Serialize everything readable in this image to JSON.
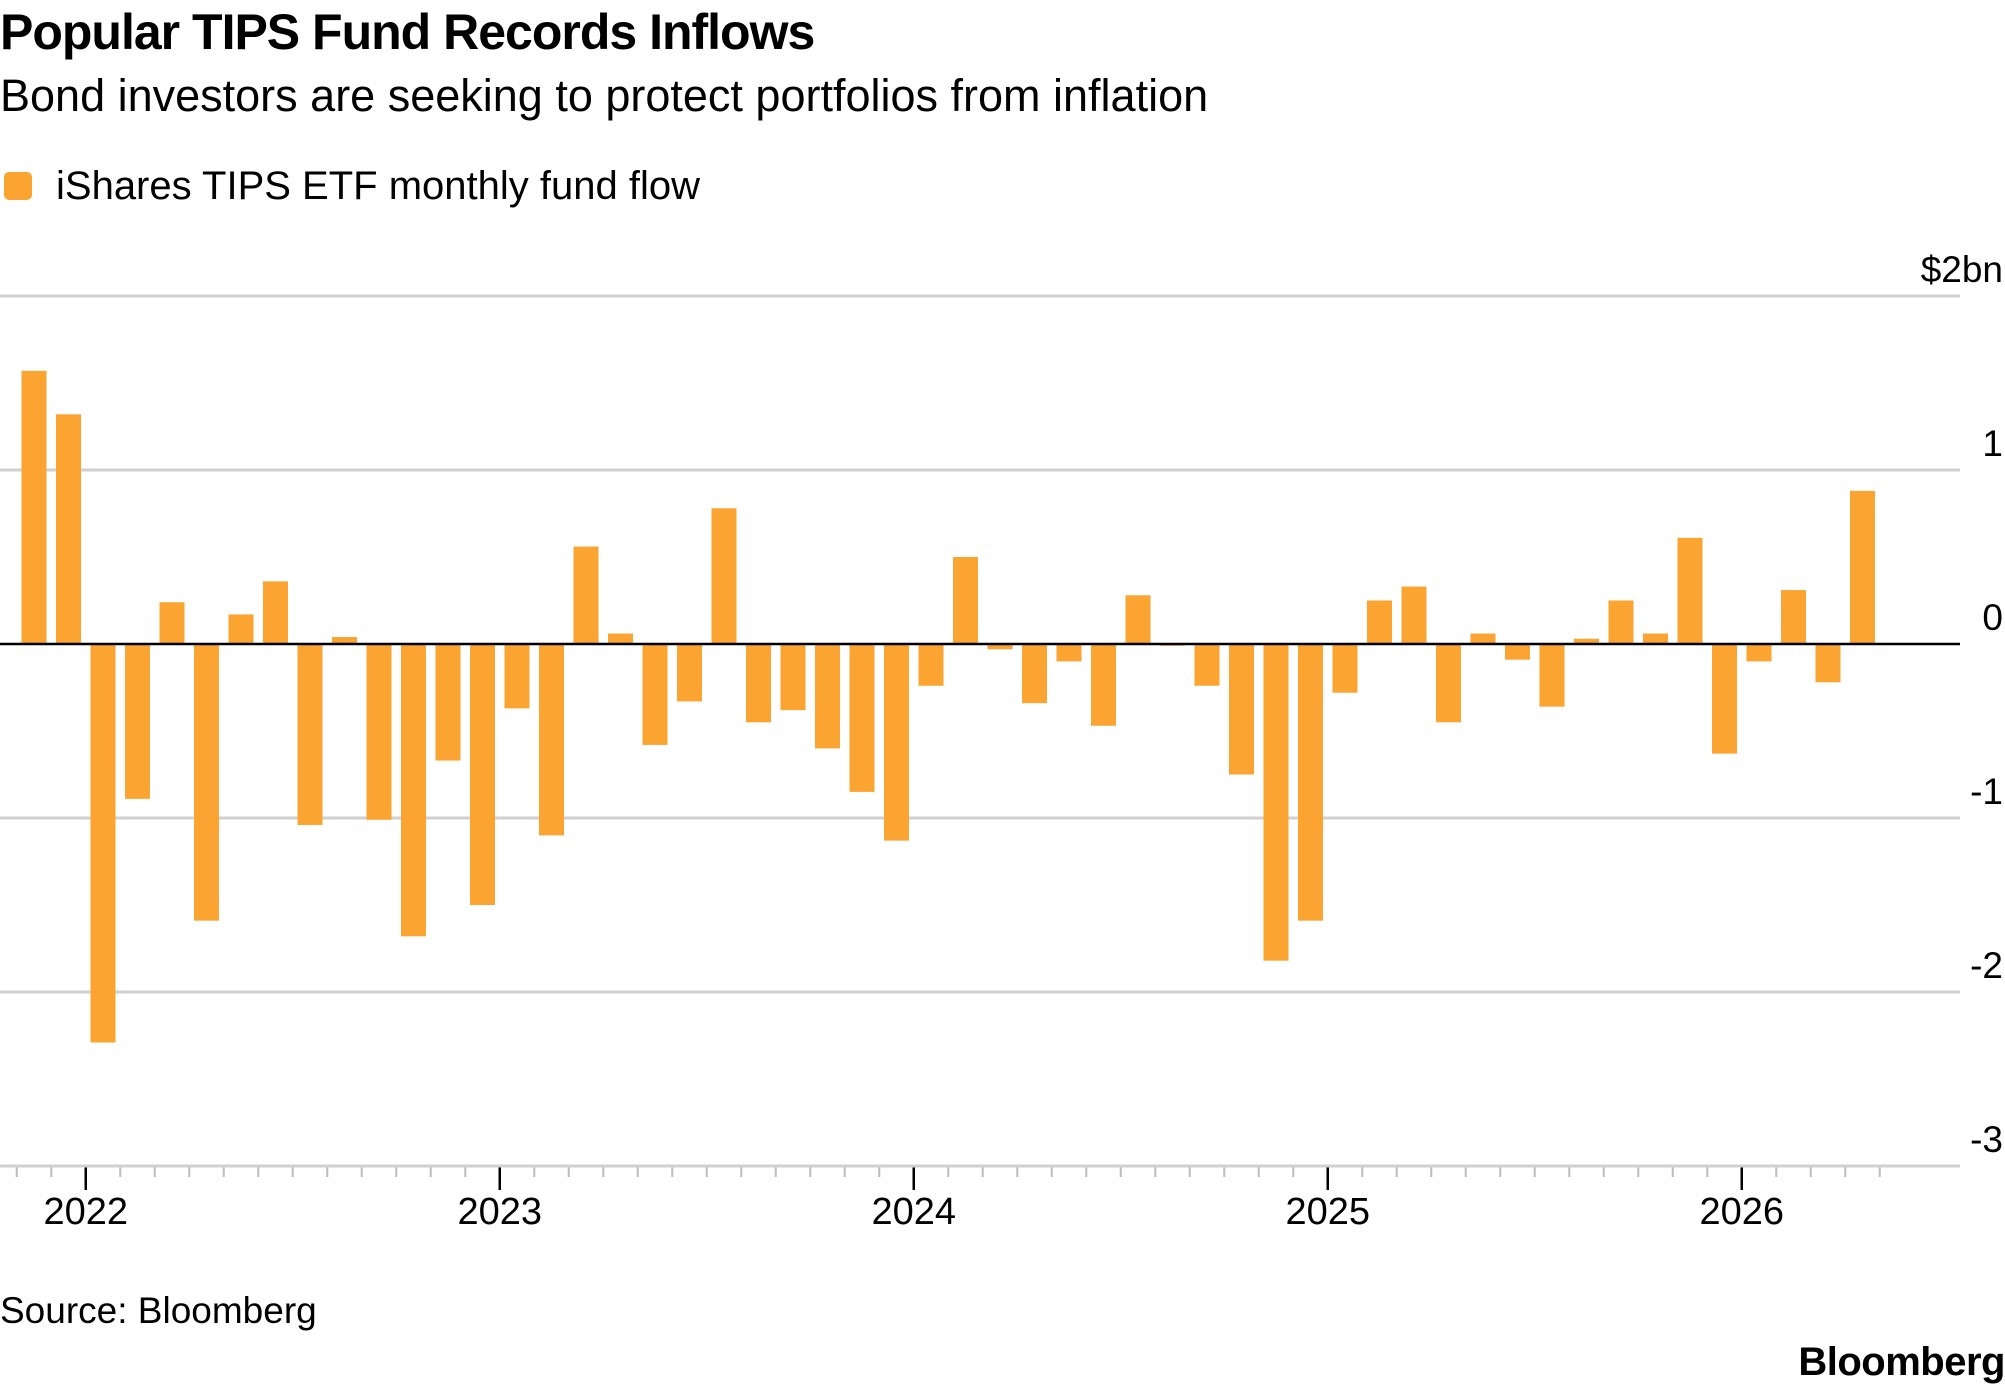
{
  "header": {
    "title": "Popular TIPS Fund Records Inflows",
    "subtitle": "Bond investors are seeking to protect portfolios from inflation"
  },
  "legend": {
    "label": "iShares TIPS ETF monthly fund flow"
  },
  "footer": {
    "source": "Source: Bloomberg",
    "brand": "Bloomberg"
  },
  "colors": {
    "bar": "#FBA431",
    "gridline": "#D0D0D0",
    "zero_line": "#000000",
    "tick": "#BDBDBD"
  },
  "chart_data": {
    "type": "bar",
    "title": "Popular TIPS Fund Records Inflows",
    "subtitle": "Bond investors are seeking to protect portfolios from inflation",
    "xlabel": "",
    "ylabel": "",
    "y_unit_label": "$2bn",
    "ylim": [
      -3,
      2
    ],
    "y_ticks": [
      2,
      1,
      0,
      -1,
      -2,
      -3
    ],
    "y_tick_labels": [
      "$2bn",
      "1",
      "0",
      "-1",
      "-2",
      "-3"
    ],
    "y_axis_position": "right",
    "grid": true,
    "legend_position": "top-left",
    "x_tick_labels": [
      "2022",
      "2023",
      "2024",
      "2025",
      "2026"
    ],
    "categories": [
      "2021-11",
      "2021-12",
      "2022-01",
      "2022-02",
      "2022-03",
      "2022-04",
      "2022-05",
      "2022-06",
      "2022-07",
      "2022-08",
      "2022-09",
      "2022-10",
      "2022-11",
      "2022-12",
      "2023-01",
      "2023-02",
      "2023-03",
      "2023-04",
      "2023-05",
      "2023-06",
      "2023-07",
      "2023-08",
      "2023-09",
      "2023-10",
      "2023-11",
      "2023-12",
      "2024-01",
      "2024-02",
      "2024-03",
      "2024-04",
      "2024-05",
      "2024-06",
      "2024-07",
      "2024-08",
      "2024-09",
      "2024-10",
      "2024-11",
      "2024-12",
      "2025-01",
      "2025-02",
      "2025-03",
      "2025-04",
      "2025-05",
      "2025-06",
      "2025-07",
      "2025-08",
      "2025-09",
      "2025-10",
      "2025-11",
      "2025-12",
      "2026-01",
      "2026-02",
      "2026-03",
      "2026-04"
    ],
    "series": [
      {
        "name": "iShares TIPS ETF monthly fund flow",
        "values": [
          1.57,
          1.32,
          -2.29,
          -0.89,
          0.24,
          -1.59,
          0.17,
          0.36,
          -1.04,
          0.04,
          -1.01,
          -1.68,
          -0.67,
          -1.5,
          -0.37,
          -1.1,
          0.56,
          0.06,
          -0.58,
          -0.33,
          0.78,
          -0.45,
          -0.38,
          -0.6,
          -0.85,
          -1.13,
          -0.24,
          0.5,
          -0.03,
          -0.34,
          -0.1,
          -0.47,
          0.28,
          -0.01,
          -0.24,
          -0.75,
          -1.82,
          -1.59,
          -0.28,
          0.25,
          0.33,
          -0.45,
          0.06,
          -0.09,
          -0.36,
          0.03,
          0.25,
          0.06,
          0.61,
          -0.63,
          -0.1,
          0.31,
          -0.22,
          0.88
        ]
      }
    ]
  }
}
